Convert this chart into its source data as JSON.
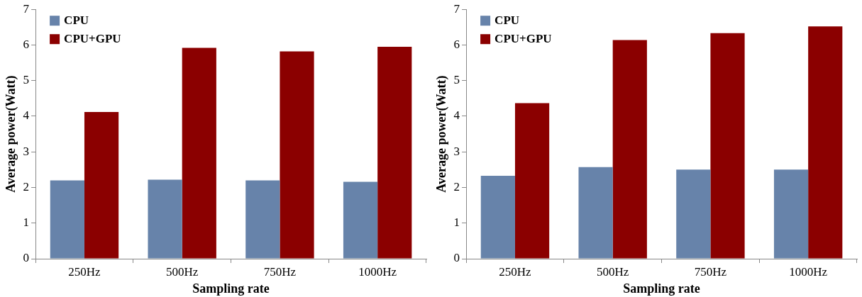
{
  "chart_data": [
    {
      "type": "bar",
      "xlabel": "Sampling rate",
      "ylabel": "Average power(Watt)",
      "categories": [
        "250Hz",
        "500Hz",
        "750Hz",
        "1000Hz"
      ],
      "series": [
        {
          "name": "CPU",
          "color": "#6783aa",
          "values": [
            2.2,
            2.22,
            2.2,
            2.16
          ]
        },
        {
          "name": "CPU+GPU",
          "color": "#8b0000",
          "values": [
            4.12,
            5.92,
            5.82,
            5.95
          ]
        }
      ],
      "ylim": [
        0,
        7
      ],
      "yticks": [
        0,
        1,
        2,
        3,
        4,
        5,
        6,
        7
      ],
      "grid": false,
      "legend": "top left"
    },
    {
      "type": "bar",
      "xlabel": "Sampling rate",
      "ylabel": "Average power(Watt)",
      "categories": [
        "250Hz",
        "500Hz",
        "750Hz",
        "1000Hz"
      ],
      "series": [
        {
          "name": "CPU",
          "color": "#6783aa",
          "values": [
            2.33,
            2.57,
            2.5,
            2.5
          ]
        },
        {
          "name": "CPU+GPU",
          "color": "#8b0000",
          "values": [
            4.37,
            6.14,
            6.33,
            6.52
          ]
        }
      ],
      "ylim": [
        0,
        7
      ],
      "yticks": [
        0,
        1,
        2,
        3,
        4,
        5,
        6,
        7
      ],
      "grid": false,
      "legend": "top left"
    }
  ]
}
